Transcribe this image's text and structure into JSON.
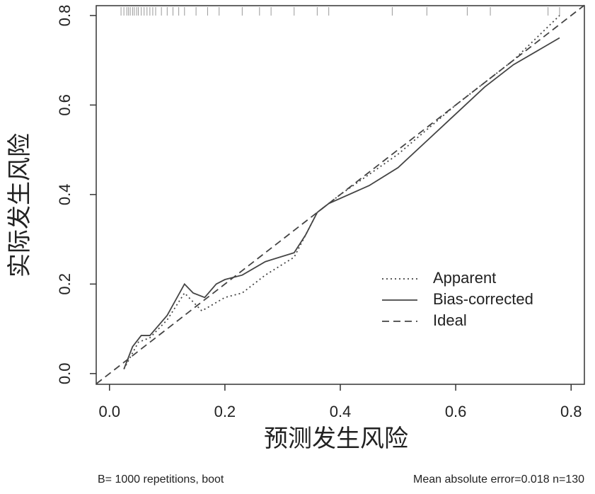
{
  "chart_data": {
    "type": "line",
    "x_label": "预测发生风险",
    "y_label": "实际发生风险",
    "footnote_left": "B= 1000 repetitions, boot",
    "footnote_right": "Mean absolute error=0.018 n=130",
    "xlim": [
      -0.023,
      0.823
    ],
    "ylim": [
      -0.024,
      0.822
    ],
    "xticks": [
      {
        "value": 0,
        "label": "0.0"
      },
      0.2,
      0.4,
      0.6,
      0.8
    ],
    "yticks": [
      {
        "value": 0,
        "label": "0.0"
      },
      0.2,
      0.4,
      0.6,
      0.8
    ],
    "legend_position": "right",
    "series": [
      {
        "name": "Apparent",
        "color": "#444444",
        "dash": "dotted",
        "x": [
          0.025,
          0.05,
          0.07,
          0.1,
          0.13,
          0.16,
          0.2,
          0.23,
          0.27,
          0.32,
          0.34,
          0.36,
          0.4,
          0.5,
          0.6,
          0.7,
          0.78
        ],
        "values": [
          0.01,
          0.07,
          0.08,
          0.12,
          0.18,
          0.14,
          0.17,
          0.18,
          0.22,
          0.26,
          0.31,
          0.36,
          0.4,
          0.49,
          0.6,
          0.7,
          0.8
        ]
      },
      {
        "name": "Bias-corrected",
        "color": "#444444",
        "dash": "solid",
        "x": [
          0.025,
          0.04,
          0.055,
          0.07,
          0.1,
          0.13,
          0.145,
          0.165,
          0.185,
          0.2,
          0.23,
          0.27,
          0.32,
          0.34,
          0.36,
          0.38,
          0.45,
          0.5,
          0.55,
          0.6,
          0.65,
          0.7,
          0.78
        ],
        "values": [
          0.01,
          0.06,
          0.085,
          0.085,
          0.13,
          0.2,
          0.18,
          0.17,
          0.2,
          0.21,
          0.22,
          0.25,
          0.27,
          0.31,
          0.36,
          0.38,
          0.42,
          0.46,
          0.52,
          0.58,
          0.64,
          0.69,
          0.75
        ]
      },
      {
        "name": "Ideal",
        "color": "#444444",
        "dash": "dashed",
        "x": [
          -0.023,
          0.823
        ],
        "values": [
          -0.023,
          0.823
        ]
      }
    ],
    "rug": [
      0.02,
      0.025,
      0.03,
      0.033,
      0.036,
      0.04,
      0.043,
      0.047,
      0.05,
      0.055,
      0.06,
      0.065,
      0.07,
      0.075,
      0.08,
      0.09,
      0.1,
      0.11,
      0.12,
      0.13,
      0.15,
      0.17,
      0.19,
      0.23,
      0.26,
      0.28,
      0.32,
      0.36,
      0.38,
      0.49,
      0.55,
      0.62,
      0.66,
      0.76,
      0.78
    ]
  }
}
